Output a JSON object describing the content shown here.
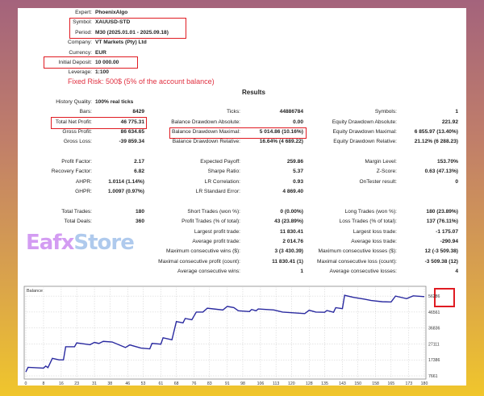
{
  "header": {
    "rows": [
      {
        "label": "Expert:",
        "value": "PhoenixAlgo"
      },
      {
        "label": "Symbol:",
        "value": "XAUUSD-STD"
      },
      {
        "label": "Period:",
        "value": "M30 (2025.01.01 - 2025.09.18)"
      },
      {
        "label": "Company:",
        "value": "VT Markets (Pty) Ltd"
      },
      {
        "label": "Currency:",
        "value": "EUR"
      },
      {
        "label": "Initial Deposit:",
        "value": "10 000.00"
      },
      {
        "label": "Leverage:",
        "value": "1:100"
      }
    ],
    "risk_note": "Fixed Risk: 500$ (5% of the account balance)"
  },
  "results": {
    "title": "Results",
    "rows": [
      {
        "c1": [
          "History Quality:",
          "100% real ticks"
        ]
      },
      {
        "c1": [
          "Bars:",
          "8429"
        ],
        "c2": [
          "Ticks:",
          "44886784"
        ],
        "c3": [
          "Symbols:",
          "1"
        ]
      },
      {
        "c1": [
          "Total Net Profit:",
          "46 775.31"
        ],
        "c2": [
          "Balance Drawdown Absolute:",
          "0.00"
        ],
        "c3": [
          "Equity Drawdown Absolute:",
          "221.92"
        ]
      },
      {
        "c1": [
          "Gross Profit:",
          "86 634.65"
        ],
        "c2": [
          "Balance Drawdown Maximal:",
          "5 014.86 (10.16%)"
        ],
        "c3": [
          "Equity Drawdown Maximal:",
          "6 855.97 (13.40%)"
        ]
      },
      {
        "c1": [
          "Gross Loss:",
          "-39 859.34"
        ],
        "c2": [
          "Balance Drawdown Relative:",
          "16.64% (4 689.22)"
        ],
        "c3": [
          "Equity Drawdown Relative:",
          "21.12% (6 288.23)"
        ]
      },
      null,
      {
        "c1": [
          "Profit Factor:",
          "2.17"
        ],
        "c2": [
          "Expected Payoff:",
          "259.86"
        ],
        "c3": [
          "Margin Level:",
          "153.70%"
        ]
      },
      {
        "c1": [
          "Recovery Factor:",
          "6.82"
        ],
        "c2": [
          "Sharpe Ratio:",
          "5.37"
        ],
        "c3": [
          "Z-Score:",
          "0.63 (47.13%)"
        ]
      },
      {
        "c1": [
          "AHPR:",
          "1.0114 (1.14%)"
        ],
        "c2": [
          "LR Correlation:",
          "0.93"
        ],
        "c3": [
          "OnTester result:",
          "0"
        ]
      },
      {
        "c1": [
          "GHPR:",
          "1.0097 (0.97%)"
        ],
        "c2": [
          "LR Standard Error:",
          "4 869.40"
        ]
      },
      null,
      {
        "c1": [
          "Total Trades:",
          "180"
        ],
        "c2": [
          "Short Trades (won %):",
          "0 (0.00%)"
        ],
        "c3": [
          "Long Trades (won %):",
          "180 (23.89%)"
        ]
      },
      {
        "c1": [
          "Total Deals:",
          "360"
        ],
        "c2": [
          "Profit Trades (% of total):",
          "43 (23.89%)"
        ],
        "c3": [
          "Loss Trades (% of total):",
          "137 (76.11%)"
        ]
      },
      {
        "c2": [
          "Largest profit trade:",
          "11 830.41"
        ],
        "c3": [
          "Largest loss trade:",
          "-1 175.07"
        ]
      },
      {
        "c2": [
          "Average profit trade:",
          "2 014.76"
        ],
        "c3": [
          "Average loss trade:",
          "-290.94"
        ]
      },
      {
        "c2": [
          "Maximum consecutive wins ($):",
          "3 (3 430.39)"
        ],
        "c3": [
          "Maximum consecutive losses ($):",
          "12 (-3 509.38)"
        ]
      },
      {
        "c2": [
          "Maximal consecutive profit (count):",
          "11 830.41 (1)"
        ],
        "c3": [
          "Maximal consecutive loss (count):",
          "-3 509.38 (12)"
        ]
      },
      {
        "c2": [
          "Average consecutive wins:",
          "1"
        ],
        "c3": [
          "Average consecutive losses:",
          "4"
        ]
      }
    ]
  },
  "watermark": {
    "text_a": "Eafx",
    "text_b": "Store",
    "color_a": "#b04ce8",
    "color_b": "#6f9fe0"
  },
  "highlight_color": "#e01b22",
  "chart_data": {
    "type": "line",
    "title": "Balance",
    "line_color": "#2a2aa0",
    "grid": true,
    "xlim": [
      0,
      180
    ],
    "x_ticks": [
      0,
      8,
      16,
      23,
      31,
      38,
      46,
      53,
      61,
      68,
      76,
      83,
      91,
      98,
      106,
      113,
      120,
      128,
      135,
      143,
      150,
      158,
      165,
      173,
      180
    ],
    "y_ticks": [
      7661,
      17386,
      27111,
      36836,
      46561,
      56286
    ],
    "ylim": [
      7661,
      62247
    ],
    "highlighted_tick": 56286,
    "series": [
      {
        "x": [
          0,
          1,
          8,
          9,
          10,
          12,
          15,
          17,
          18,
          22,
          23,
          29,
          31,
          33,
          35,
          39,
          45,
          47,
          52,
          56,
          57,
          61,
          62,
          66,
          68,
          71,
          72,
          75,
          77,
          80,
          82,
          89,
          91,
          94,
          96,
          101,
          102,
          104,
          105,
          112,
          116,
          126,
          128,
          131,
          135,
          136,
          139,
          140,
          143,
          144,
          148,
          153,
          156,
          161,
          165,
          167,
          172,
          175,
          180
        ],
        "y": [
          10000,
          12840,
          12370,
          13620,
          12680,
          18330,
          17390,
          17390,
          25380,
          25380,
          27740,
          26640,
          28050,
          27400,
          28680,
          28300,
          24920,
          26500,
          24600,
          24130,
          27430,
          26960,
          30880,
          29620,
          40760,
          39970,
          42640,
          41860,
          46560,
          46560,
          48910,
          47810,
          50010,
          49230,
          47340,
          46870,
          48120,
          47340,
          48440,
          47810,
          46560,
          45620,
          47660,
          46560,
          46400,
          47500,
          46400,
          49230,
          48600,
          56760,
          55500,
          54400,
          53620,
          52840,
          52700,
          56290,
          54720,
          56440,
          55970
        ]
      }
    ]
  }
}
